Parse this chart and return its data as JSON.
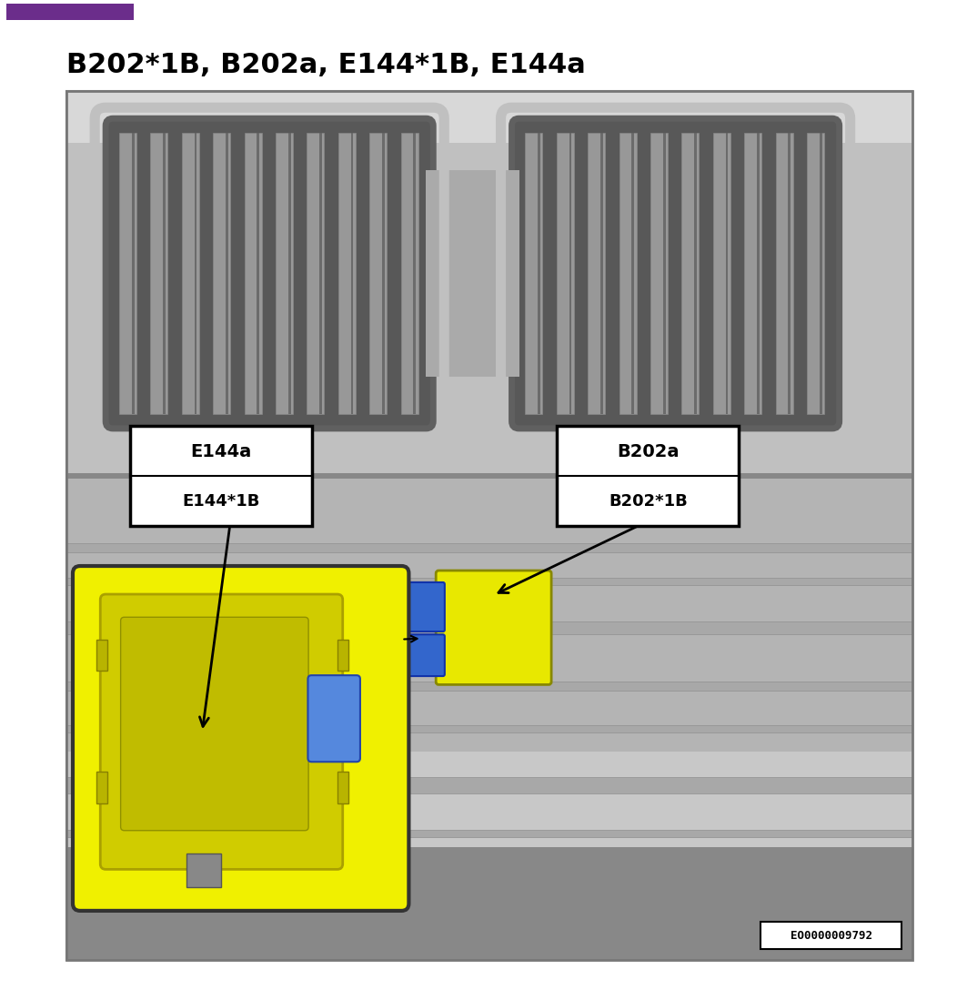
{
  "title": "B202*1B, B202a, E144*1B, E144a",
  "title_color": "#000000",
  "title_fontsize": 22,
  "title_fontweight": "bold",
  "purple_bar_color": "#6B2D8B",
  "bg_color": "#ffffff",
  "label_left_line1": "E144a",
  "label_left_line2": "E144*1B",
  "label_right_line1": "B202a",
  "label_right_line2": "B202*1B",
  "figure_id": "EO0000009792",
  "figure_id_fontsize": 9,
  "silver_light": "#d8d8d8",
  "silver_mid": "#b8b8b8",
  "silver_dark": "#909090",
  "silver_darker": "#787878",
  "silver_edge": "#606060",
  "yellow_main": "#e8e800",
  "yellow_light": "#f0f000",
  "blue_conn": "#3366cc",
  "inset_border": "#333333",
  "label_fontsize": 14,
  "label_fontsize2": 13
}
